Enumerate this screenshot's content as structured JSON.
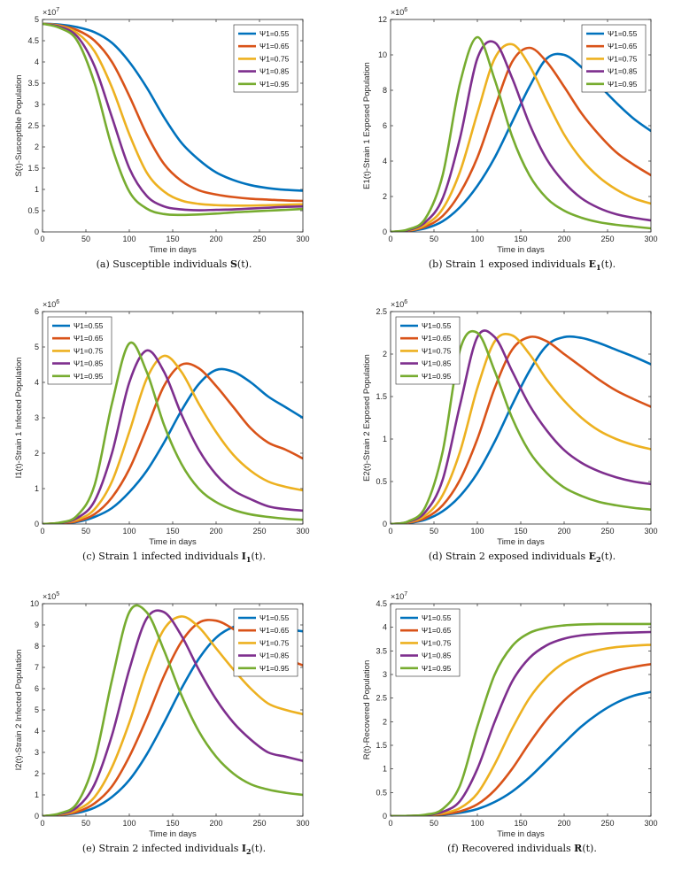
{
  "colors": [
    "#0072BD",
    "#D95319",
    "#EDB120",
    "#7E2F8E",
    "#77AC30"
  ],
  "legend_labels": [
    "Ψ1=0.55",
    "Ψ1=0.65",
    "Ψ1=0.75",
    "Ψ1=0.85",
    "Ψ1=0.95"
  ],
  "chart_data": [
    {
      "type": "line",
      "caption": {
        "label": "(a)",
        "text": "Susceptible individuals",
        "symbol": "S",
        "arg": "(t)."
      },
      "ylabel": "S(t)-Susceptible Population",
      "xlabel": "Time in days",
      "exponent_label": "×10",
      "exponent_power": "7",
      "xlim": [
        0,
        300
      ],
      "ylim": [
        0,
        5
      ],
      "xticks": [
        0,
        50,
        100,
        150,
        200,
        250,
        300
      ],
      "yticks": [
        0,
        0.5,
        1,
        1.5,
        2,
        2.5,
        3,
        3.5,
        4,
        4.5,
        5
      ],
      "ytick_labels": [
        "0",
        "0.5",
        "1",
        "1.5",
        "2",
        "2.5",
        "3",
        "3.5",
        "4",
        "4.5",
        "5"
      ],
      "legend_position": "top-right",
      "x": [
        0,
        20,
        40,
        60,
        80,
        100,
        120,
        140,
        160,
        180,
        200,
        220,
        240,
        260,
        280,
        300
      ],
      "series": [
        {
          "name": "Ψ1=0.55",
          "values": [
            4.9,
            4.88,
            4.82,
            4.7,
            4.45,
            4.0,
            3.4,
            2.7,
            2.1,
            1.7,
            1.4,
            1.22,
            1.1,
            1.03,
            0.99,
            0.97
          ]
        },
        {
          "name": "Ψ1=0.65",
          "values": [
            4.9,
            4.86,
            4.75,
            4.5,
            4.0,
            3.2,
            2.3,
            1.6,
            1.2,
            0.98,
            0.88,
            0.82,
            0.78,
            0.76,
            0.74,
            0.73
          ]
        },
        {
          "name": "Ψ1=0.75",
          "values": [
            4.9,
            4.85,
            4.68,
            4.25,
            3.4,
            2.3,
            1.4,
            0.95,
            0.74,
            0.66,
            0.63,
            0.62,
            0.62,
            0.63,
            0.64,
            0.65
          ]
        },
        {
          "name": "Ψ1=0.85",
          "values": [
            4.9,
            4.83,
            4.6,
            3.9,
            2.7,
            1.5,
            0.85,
            0.6,
            0.53,
            0.51,
            0.52,
            0.53,
            0.55,
            0.57,
            0.59,
            0.6
          ]
        },
        {
          "name": "Ψ1=0.95",
          "values": [
            4.9,
            4.8,
            4.5,
            3.5,
            2.0,
            0.95,
            0.55,
            0.42,
            0.4,
            0.41,
            0.43,
            0.46,
            0.48,
            0.5,
            0.52,
            0.54
          ]
        }
      ]
    },
    {
      "type": "line",
      "caption": {
        "label": "(b)",
        "text": "Strain 1 exposed individuals",
        "symbol": "E",
        "sub": "1",
        "arg": "(t)."
      },
      "ylabel": "E1(t)-Strain 1 Exposed Population",
      "xlabel": "Time in days",
      "exponent_label": "×10",
      "exponent_power": "6",
      "xlim": [
        0,
        300
      ],
      "ylim": [
        0,
        12
      ],
      "xticks": [
        0,
        50,
        100,
        150,
        200,
        250,
        300
      ],
      "yticks": [
        0,
        2,
        4,
        6,
        8,
        10,
        12
      ],
      "ytick_labels": [
        "0",
        "2",
        "4",
        "6",
        "8",
        "10",
        "12"
      ],
      "legend_position": "top-right",
      "x": [
        0,
        20,
        40,
        60,
        80,
        100,
        120,
        140,
        160,
        180,
        200,
        220,
        240,
        260,
        280,
        300
      ],
      "series": [
        {
          "name": "Ψ1=0.55",
          "values": [
            0,
            0.05,
            0.2,
            0.6,
            1.4,
            2.6,
            4.2,
            6.2,
            8.2,
            9.8,
            10.0,
            9.3,
            8.3,
            7.3,
            6.4,
            5.7
          ]
        },
        {
          "name": "Ψ1=0.65",
          "values": [
            0,
            0.06,
            0.3,
            0.9,
            2.2,
            4.2,
            7.0,
            9.6,
            10.4,
            9.6,
            8.2,
            6.7,
            5.5,
            4.5,
            3.8,
            3.2
          ]
        },
        {
          "name": "Ψ1=0.75",
          "values": [
            0,
            0.08,
            0.4,
            1.3,
            3.4,
            6.7,
            9.8,
            10.6,
            9.4,
            7.4,
            5.5,
            4.1,
            3.1,
            2.4,
            1.9,
            1.6
          ]
        },
        {
          "name": "Ψ1=0.85",
          "values": [
            0,
            0.1,
            0.55,
            1.9,
            5.3,
            9.8,
            10.7,
            8.7,
            6.1,
            4.1,
            2.8,
            1.9,
            1.35,
            1.0,
            0.8,
            0.65
          ]
        },
        {
          "name": "Ψ1=0.95",
          "values": [
            0,
            0.14,
            0.75,
            3.2,
            8.4,
            11.0,
            8.6,
            5.4,
            3.2,
            1.9,
            1.2,
            0.8,
            0.55,
            0.4,
            0.3,
            0.2
          ]
        }
      ]
    },
    {
      "type": "line",
      "caption": {
        "label": "(c)",
        "text": "Strain 1 infected individuals",
        "symbol": "I",
        "sub": "1",
        "arg": "(t)."
      },
      "ylabel": "I1(t)-Strain 1 Infected Population",
      "xlabel": "Time in days",
      "exponent_label": "×10",
      "exponent_power": "6",
      "xlim": [
        0,
        300
      ],
      "ylim": [
        0,
        6
      ],
      "xticks": [
        0,
        50,
        100,
        150,
        200,
        250,
        300
      ],
      "yticks": [
        0,
        1,
        2,
        3,
        4,
        5,
        6
      ],
      "ytick_labels": [
        "0",
        "1",
        "2",
        "3",
        "4",
        "5",
        "6"
      ],
      "legend_position": "top-left",
      "x": [
        0,
        20,
        40,
        60,
        80,
        100,
        120,
        140,
        160,
        180,
        200,
        220,
        240,
        260,
        280,
        300
      ],
      "series": [
        {
          "name": "Ψ1=0.55",
          "values": [
            0,
            0.02,
            0.06,
            0.2,
            0.45,
            0.9,
            1.5,
            2.3,
            3.2,
            3.95,
            4.35,
            4.3,
            4.0,
            3.6,
            3.3,
            3.0
          ]
        },
        {
          "name": "Ψ1=0.65",
          "values": [
            0,
            0.02,
            0.08,
            0.28,
            0.75,
            1.55,
            2.7,
            3.9,
            4.5,
            4.4,
            3.9,
            3.3,
            2.7,
            2.3,
            2.1,
            1.85
          ]
        },
        {
          "name": "Ψ1=0.75",
          "values": [
            0,
            0.03,
            0.12,
            0.42,
            1.2,
            2.6,
            4.1,
            4.75,
            4.3,
            3.4,
            2.6,
            1.95,
            1.5,
            1.2,
            1.05,
            0.95
          ]
        },
        {
          "name": "Ψ1=0.85",
          "values": [
            0,
            0.03,
            0.17,
            0.65,
            2.0,
            4.0,
            4.9,
            4.3,
            3.1,
            2.1,
            1.4,
            0.95,
            0.7,
            0.5,
            0.42,
            0.38
          ]
        },
        {
          "name": "Ψ1=0.95",
          "values": [
            0,
            0.04,
            0.24,
            1.1,
            3.4,
            5.1,
            4.3,
            2.8,
            1.7,
            1.0,
            0.62,
            0.4,
            0.27,
            0.2,
            0.15,
            0.12
          ]
        }
      ]
    },
    {
      "type": "line",
      "caption": {
        "label": "(d)",
        "text": "Strain 2 exposed individuals",
        "symbol": "E",
        "sub": "2",
        "arg": "(t)."
      },
      "ylabel": "E2(t)-Strain 2 Exposed Population",
      "xlabel": "Time in days",
      "exponent_label": "×10",
      "exponent_power": "6",
      "xlim": [
        0,
        300
      ],
      "ylim": [
        0,
        2.5
      ],
      "xticks": [
        0,
        50,
        100,
        150,
        200,
        250,
        300
      ],
      "yticks": [
        0,
        0.5,
        1,
        1.5,
        2,
        2.5
      ],
      "ytick_labels": [
        "0",
        "0.5",
        "1",
        "1.5",
        "2",
        "2.5"
      ],
      "legend_position": "top-left",
      "x": [
        0,
        20,
        40,
        60,
        80,
        100,
        120,
        140,
        160,
        180,
        200,
        220,
        240,
        260,
        280,
        300
      ],
      "series": [
        {
          "name": "Ψ1=0.55",
          "values": [
            0,
            0.01,
            0.05,
            0.15,
            0.33,
            0.6,
            0.97,
            1.4,
            1.8,
            2.1,
            2.2,
            2.19,
            2.13,
            2.05,
            1.97,
            1.88
          ]
        },
        {
          "name": "Ψ1=0.65",
          "values": [
            0,
            0.015,
            0.07,
            0.22,
            0.52,
            1.0,
            1.6,
            2.05,
            2.2,
            2.15,
            2.0,
            1.85,
            1.7,
            1.57,
            1.47,
            1.38
          ]
        },
        {
          "name": "Ψ1=0.75",
          "values": [
            0,
            0.02,
            0.1,
            0.34,
            0.85,
            1.6,
            2.15,
            2.22,
            2.0,
            1.7,
            1.45,
            1.25,
            1.1,
            1.0,
            0.93,
            0.88
          ]
        },
        {
          "name": "Ψ1=0.85",
          "values": [
            0,
            0.025,
            0.14,
            0.52,
            1.4,
            2.2,
            2.2,
            1.8,
            1.4,
            1.1,
            0.87,
            0.72,
            0.62,
            0.55,
            0.5,
            0.47
          ]
        },
        {
          "name": "Ψ1=0.95",
          "values": [
            0,
            0.03,
            0.2,
            0.85,
            2.05,
            2.25,
            1.8,
            1.25,
            0.85,
            0.6,
            0.43,
            0.33,
            0.26,
            0.22,
            0.19,
            0.17
          ]
        }
      ]
    },
    {
      "type": "line",
      "caption": {
        "label": "(e)",
        "text": "Strain 2 infected individuals",
        "symbol": "I",
        "sub": "2",
        "arg": "(t)."
      },
      "ylabel": "I2(t)-Strain 2 Infected Population",
      "xlabel": "Time in days",
      "exponent_label": "×10",
      "exponent_power": "5",
      "xlim": [
        0,
        300
      ],
      "ylim": [
        0,
        10
      ],
      "xticks": [
        0,
        50,
        100,
        150,
        200,
        250,
        300
      ],
      "yticks": [
        0,
        1,
        2,
        3,
        4,
        5,
        6,
        7,
        8,
        9,
        10
      ],
      "ytick_labels": [
        "0",
        "1",
        "2",
        "3",
        "4",
        "5",
        "6",
        "7",
        "8",
        "9",
        "10"
      ],
      "legend_position": "top-right",
      "x": [
        0,
        20,
        40,
        60,
        80,
        100,
        120,
        140,
        160,
        180,
        200,
        220,
        240,
        260,
        280,
        300
      ],
      "series": [
        {
          "name": "Ψ1=0.55",
          "values": [
            0,
            0.05,
            0.15,
            0.4,
            0.9,
            1.7,
            2.9,
            4.4,
            6.0,
            7.4,
            8.4,
            8.9,
            9.0,
            8.9,
            8.8,
            8.7
          ]
        },
        {
          "name": "Ψ1=0.65",
          "values": [
            0,
            0.06,
            0.2,
            0.6,
            1.4,
            2.8,
            4.6,
            6.6,
            8.2,
            9.1,
            9.2,
            8.8,
            8.2,
            7.7,
            7.4,
            7.1
          ]
        },
        {
          "name": "Ψ1=0.75",
          "values": [
            0,
            0.08,
            0.3,
            0.9,
            2.3,
            4.4,
            6.9,
            8.8,
            9.4,
            8.9,
            7.9,
            6.9,
            6.0,
            5.3,
            5.0,
            4.8
          ]
        },
        {
          "name": "Ψ1=0.85",
          "values": [
            0,
            0.1,
            0.42,
            1.5,
            3.8,
            6.9,
            9.3,
            9.6,
            8.5,
            6.9,
            5.5,
            4.4,
            3.6,
            3.0,
            2.8,
            2.6
          ]
        },
        {
          "name": "Ψ1=0.95",
          "values": [
            0,
            0.13,
            0.62,
            2.6,
            6.4,
            9.6,
            9.6,
            7.8,
            5.7,
            4.0,
            2.8,
            2.0,
            1.5,
            1.25,
            1.1,
            1.0
          ]
        }
      ]
    },
    {
      "type": "line",
      "caption": {
        "label": "(f)",
        "text": "Recovered individuals",
        "symbol": "R",
        "arg": "(t)."
      },
      "ylabel": "R(t)-Recovered Population",
      "xlabel": "Time in days",
      "exponent_label": "×10",
      "exponent_power": "7",
      "xlim": [
        0,
        300
      ],
      "ylim": [
        0,
        4.5
      ],
      "xticks": [
        0,
        50,
        100,
        150,
        200,
        250,
        300
      ],
      "yticks": [
        0,
        0.5,
        1,
        1.5,
        2,
        2.5,
        3,
        3.5,
        4,
        4.5
      ],
      "ytick_labels": [
        "0",
        "0.5",
        "1",
        "1.5",
        "2",
        "2.5",
        "3",
        "3.5",
        "4",
        "4.5"
      ],
      "legend_position": "top-left",
      "x": [
        0,
        20,
        40,
        60,
        80,
        100,
        120,
        140,
        160,
        180,
        200,
        220,
        240,
        260,
        280,
        300
      ],
      "series": [
        {
          "name": "Ψ1=0.55",
          "values": [
            0,
            0.003,
            0.01,
            0.03,
            0.07,
            0.15,
            0.3,
            0.52,
            0.82,
            1.18,
            1.55,
            1.9,
            2.18,
            2.4,
            2.55,
            2.63
          ]
        },
        {
          "name": "Ψ1=0.65",
          "values": [
            0,
            0.003,
            0.012,
            0.04,
            0.1,
            0.25,
            0.55,
            1.0,
            1.55,
            2.05,
            2.45,
            2.75,
            2.95,
            3.08,
            3.16,
            3.22
          ]
        },
        {
          "name": "Ψ1=0.75",
          "values": [
            0,
            0.004,
            0.015,
            0.06,
            0.17,
            0.48,
            1.1,
            1.85,
            2.5,
            2.95,
            3.25,
            3.42,
            3.52,
            3.58,
            3.61,
            3.63
          ]
        },
        {
          "name": "Ψ1=0.85",
          "values": [
            0,
            0.005,
            0.02,
            0.09,
            0.32,
            1.0,
            2.0,
            2.85,
            3.35,
            3.62,
            3.76,
            3.83,
            3.86,
            3.88,
            3.89,
            3.9
          ]
        },
        {
          "name": "Ψ1=0.95",
          "values": [
            0,
            0.006,
            0.03,
            0.15,
            0.65,
            1.9,
            3.0,
            3.6,
            3.88,
            3.99,
            4.04,
            4.06,
            4.07,
            4.07,
            4.07,
            4.07
          ]
        }
      ]
    }
  ]
}
